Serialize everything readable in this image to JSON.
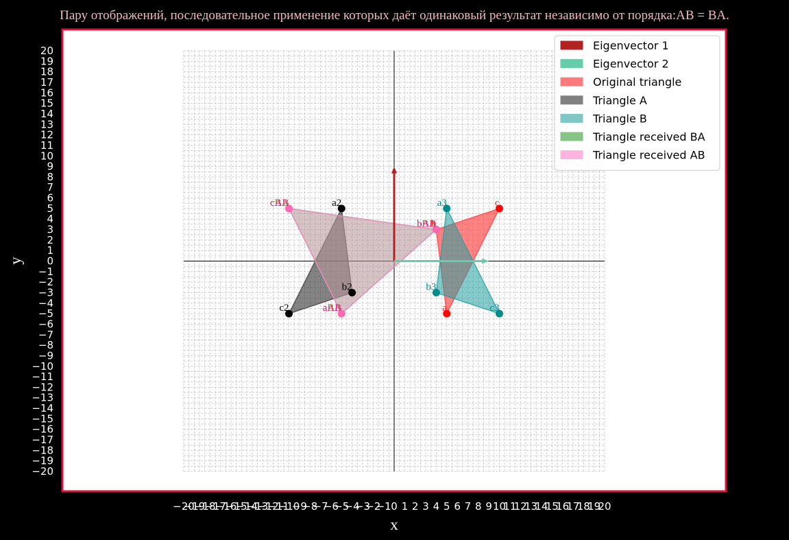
{
  "chart_data": {
    "type": "area",
    "title": "Пару отображений, последовательное применение которых даёт одинаковый результат независимо от порядка:AB = BA.",
    "xlabel": "x",
    "ylabel": "y",
    "xlim": [
      -20,
      20
    ],
    "ylim": [
      -20,
      20
    ],
    "grid": true,
    "legend_position": "upper-right",
    "frame_color": "#dc143c",
    "vectors": [
      {
        "name": "Eigenvector 1",
        "from": [
          0,
          0
        ],
        "to": [
          0,
          9
        ],
        "color": "#b22222"
      },
      {
        "name": "Eigenvector 2",
        "from": [
          0,
          0
        ],
        "to": [
          9,
          0
        ],
        "color": "#66cdaa"
      }
    ],
    "triangles": [
      {
        "name": "Original triangle",
        "color": "#ff4040",
        "alpha": 0.65,
        "points": [
          [
            5,
            -5
          ],
          [
            4,
            3
          ],
          [
            10,
            5
          ]
        ],
        "labels": [
          "a",
          "b",
          "c"
        ],
        "label_color": "#ff2020",
        "marker_color": "#ff0000"
      },
      {
        "name": "Triangle A",
        "color": "#404040",
        "alpha": 0.65,
        "points": [
          [
            -5,
            5
          ],
          [
            -4,
            -3
          ],
          [
            -10,
            -5
          ]
        ],
        "labels": [
          "a2",
          "b2",
          "c2"
        ],
        "label_color": "#000000",
        "marker_color": "#000000"
      },
      {
        "name": "Triangle B",
        "color": "#20a0a0",
        "alpha": 0.55,
        "points": [
          [
            5,
            5
          ],
          [
            4,
            -3
          ],
          [
            10,
            -5
          ]
        ],
        "labels": [
          "a3",
          "b3",
          "c3"
        ],
        "label_color": "#008b8b",
        "marker_color": "#008b8b"
      },
      {
        "name": "Triangle received BA",
        "color": "#4caf50",
        "alpha": 0.35,
        "points": [
          [
            -5,
            -5
          ],
          [
            4,
            3
          ],
          [
            -10,
            5
          ]
        ],
        "labels": [
          "aBA",
          "bBA",
          "cBA"
        ],
        "label_color": "#6b8e23",
        "marker_color": "#ff69b4"
      },
      {
        "name": "Triangle received AB",
        "color": "#ff88cc",
        "alpha": 0.35,
        "points": [
          [
            -5,
            -5
          ],
          [
            4,
            3
          ],
          [
            -10,
            5
          ]
        ],
        "labels": [
          "aAB",
          "bAB",
          "cAB"
        ],
        "label_color": "#ff1493",
        "marker_color": "#ff69b4"
      }
    ],
    "legend": [
      {
        "label": "Eigenvector 1",
        "color": "#b22222"
      },
      {
        "label": "Eigenvector 2",
        "color": "#66cdaa"
      },
      {
        "label": "Original triangle",
        "color": "#ff7b7b"
      },
      {
        "label": "Triangle A",
        "color": "#808080"
      },
      {
        "label": "Triangle B",
        "color": "#7fc7c7"
      },
      {
        "label": "Triangle received BA",
        "color": "#86c486"
      },
      {
        "label": "Triangle received AB",
        "color": "#ffb3de"
      }
    ]
  }
}
